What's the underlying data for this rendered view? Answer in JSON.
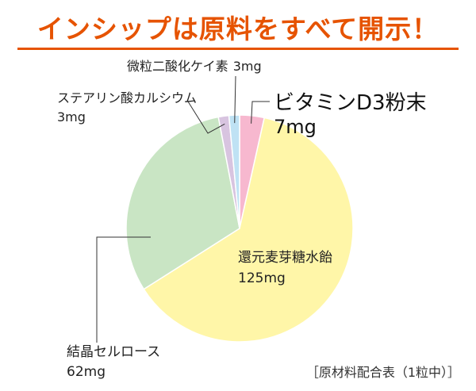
{
  "title": "インシップは原料をすべて開示！",
  "footnote": "［原材料配合表（1粒中）］",
  "colors": {
    "title": "#e65300",
    "syrup": "#fff6a8",
    "cellulose": "#c9e5c4",
    "calcium": "#d8c4e0",
    "silica": "#bfe2f4",
    "vitd": "#f7b8cf"
  },
  "chart_data": {
    "type": "pie",
    "title": "",
    "unit": "mg",
    "slices": [
      {
        "name": "ビタミンD3粉末",
        "value": 7,
        "value_label": "7mg"
      },
      {
        "name": "還元麦芽糖水飴",
        "value": 125,
        "value_label": "125mg"
      },
      {
        "name": "結晶セルロース",
        "value": 62,
        "value_label": "62mg"
      },
      {
        "name": "ステアリン酸カルシウム",
        "value": 3,
        "value_label": "3mg"
      },
      {
        "name": "微粒二酸化ケイ素",
        "value": 3,
        "value_label": "3mg"
      }
    ]
  }
}
